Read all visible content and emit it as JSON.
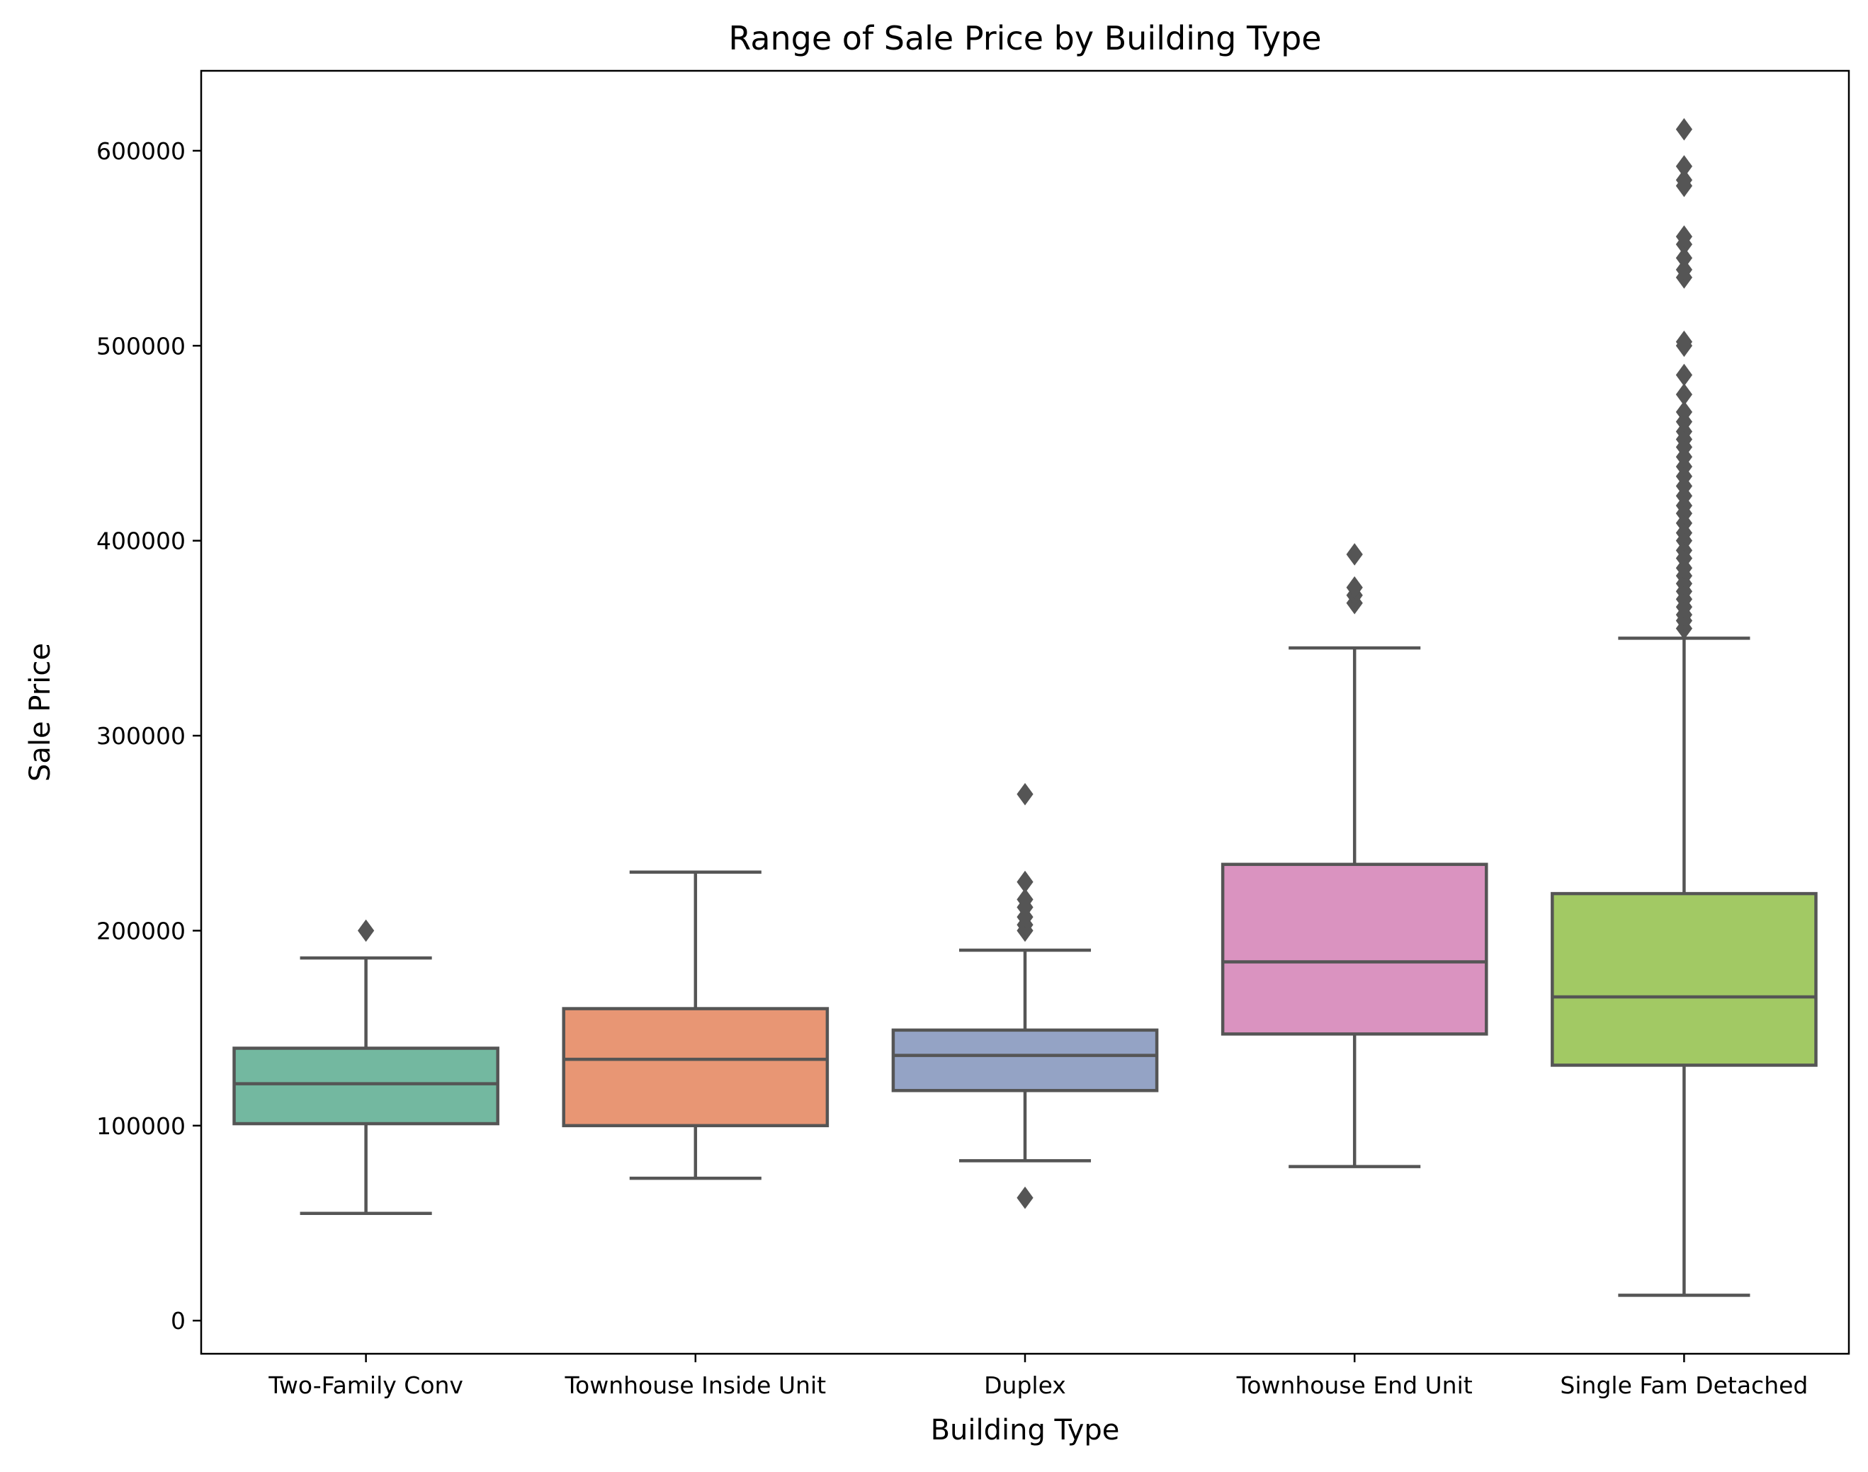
{
  "chart_data": {
    "type": "box",
    "title": "Range of Sale Price by Building Type",
    "xlabel": "Building Type",
    "ylabel": "Sale Price",
    "ylim": [
      -17000,
      641000
    ],
    "yticks": [
      0,
      100000,
      200000,
      300000,
      400000,
      500000,
      600000
    ],
    "ytick_labels": [
      "0",
      "100000",
      "200000",
      "300000",
      "400000",
      "500000",
      "600000"
    ],
    "grid": false,
    "legend": "none",
    "line_color": "#555555",
    "categories": [
      "Two-Family Conv",
      "Townhouse Inside Unit",
      "Duplex",
      "Townhouse End Unit",
      "Single Fam Detached"
    ],
    "series": [
      {
        "category": "Two-Family Conv",
        "color": "#73b8a0",
        "whisker_low": 55000,
        "q1": 101000,
        "median": 121500,
        "q3": 139700,
        "whisker_high": 186000,
        "outliers": [
          200000
        ]
      },
      {
        "category": "Townhouse Inside Unit",
        "color": "#e89674",
        "whisker_low": 73000,
        "q1": 100000,
        "median": 134000,
        "q3": 160000,
        "whisker_high": 230000,
        "outliers": []
      },
      {
        "category": "Duplex",
        "color": "#94a3c5",
        "whisker_low": 82000,
        "q1": 118000,
        "median": 136000,
        "q3": 149000,
        "whisker_high": 190000,
        "outliers": [
          63000,
          200000,
          203000,
          207000,
          212000,
          216000,
          225000,
          270000
        ]
      },
      {
        "category": "Townhouse End Unit",
        "color": "#da93c0",
        "whisker_low": 79000,
        "q1": 147000,
        "median": 184000,
        "q3": 234000,
        "whisker_high": 345000,
        "outliers": [
          368000,
          372000,
          376000,
          393000
        ]
      },
      {
        "category": "Single Fam Detached",
        "color": "#a2c964",
        "whisker_low": 13000,
        "q1": 131000,
        "median": 166000,
        "q3": 219000,
        "whisker_high": 350000,
        "outliers": [
          355000,
          359000,
          362000,
          366000,
          370000,
          374000,
          378000,
          382000,
          386000,
          391000,
          395000,
          400000,
          404000,
          409000,
          414000,
          418000,
          423000,
          428000,
          433000,
          438000,
          443000,
          448000,
          452000,
          456000,
          461000,
          466000,
          475000,
          485000,
          500000,
          502000,
          535000,
          539000,
          545000,
          552000,
          556000,
          582000,
          585000,
          592000,
          611000
        ]
      }
    ]
  }
}
